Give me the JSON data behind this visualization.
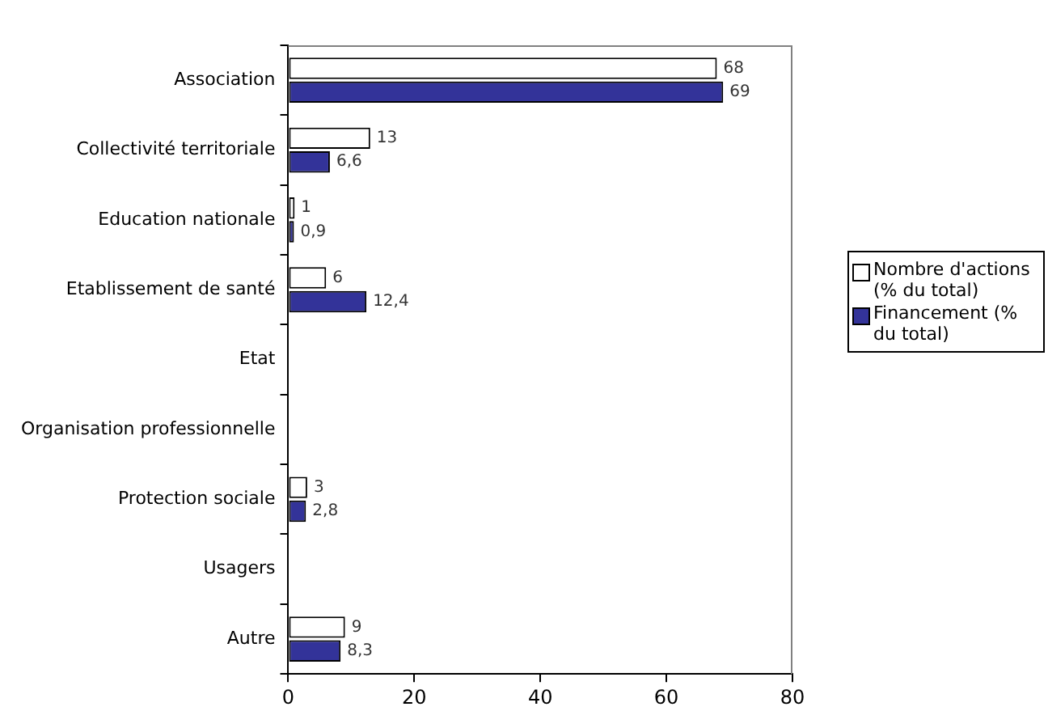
{
  "chart_data": {
    "type": "bar",
    "orientation": "horizontal",
    "categories": [
      "Association",
      "Collectivité territoriale",
      "Education nationale",
      "Etablissement de santé",
      "Etat",
      "Organisation professionnelle",
      "Protection sociale",
      "Usagers",
      "Autre"
    ],
    "series": [
      {
        "name": "Nombre d'actions (% du total)",
        "color": "#ffffff",
        "values": [
          68,
          13,
          1,
          6,
          null,
          null,
          3,
          null,
          9
        ],
        "value_labels": [
          "68",
          "13",
          "1",
          "6",
          null,
          null,
          "3",
          null,
          "9"
        ]
      },
      {
        "name": "Financement (% du total)",
        "color": "#333399",
        "values": [
          69,
          6.6,
          0.9,
          12.4,
          null,
          null,
          2.8,
          null,
          8.3
        ],
        "value_labels": [
          "69",
          "6,6",
          "0,9",
          "12,4",
          null,
          null,
          "2,8",
          null,
          "8,3"
        ]
      }
    ],
    "xlim": [
      0,
      80
    ],
    "xticks": [
      0,
      20,
      40,
      60,
      80
    ],
    "grid": false,
    "legend": "right"
  }
}
